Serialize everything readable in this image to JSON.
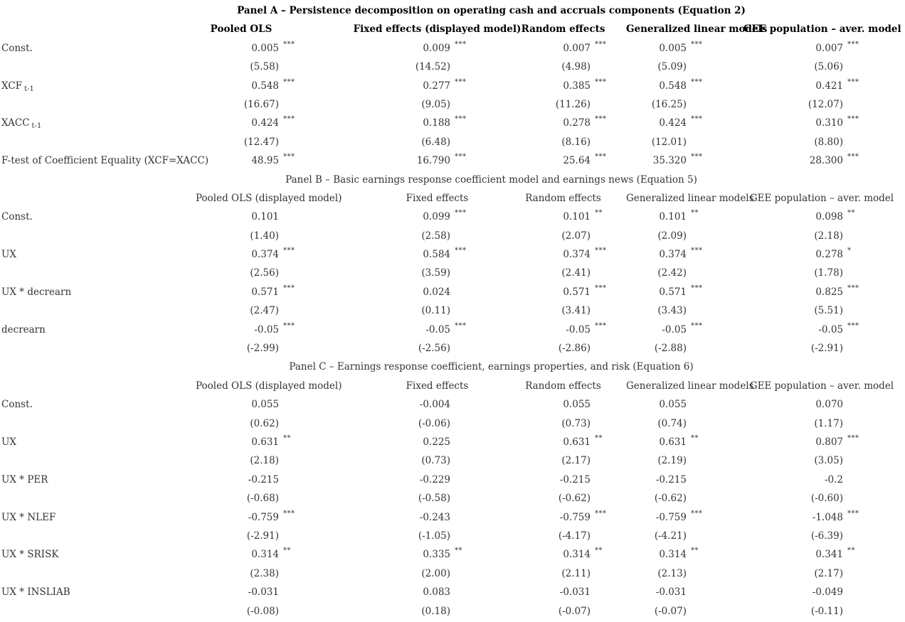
{
  "panels": [
    {
      "title": "Panel A – Persistence decomposition on operating cash and accruals components (Equation 2)",
      "headers": [
        "Pooled OLS",
        "Fixed effects (displayed model)",
        "Random effects",
        "Generalized linear models",
        "GEE population – aver. model"
      ],
      "rows": [
        {
          "label": "Const.",
          "sub": "",
          "values": [
            [
              "0.005",
              "***"
            ],
            [
              "0.009",
              "***"
            ],
            [
              "0.007",
              "***"
            ],
            [
              "0.005",
              "***"
            ],
            [
              "0.007",
              "***"
            ]
          ]
        },
        {
          "label": "",
          "sub": "",
          "values": [
            [
              "(5.58)",
              ""
            ],
            [
              "(14.52)",
              ""
            ],
            [
              "(4.98)",
              ""
            ],
            [
              "(5.09)",
              ""
            ],
            [
              "(5.06)",
              ""
            ]
          ]
        },
        {
          "label": "XCF",
          "sub": "t-1",
          "values": [
            [
              "0.548",
              "***"
            ],
            [
              "0.277",
              "***"
            ],
            [
              "0.385",
              "***"
            ],
            [
              "0.548",
              "***"
            ],
            [
              "0.421",
              "***"
            ]
          ]
        },
        {
          "label": "",
          "sub": "",
          "values": [
            [
              "(16.67)",
              ""
            ],
            [
              "(9.05)",
              ""
            ],
            [
              "(11.26)",
              ""
            ],
            [
              "(16.25)",
              ""
            ],
            [
              "(12.07)",
              ""
            ]
          ]
        },
        {
          "label": "XACC",
          "sub": "t-1",
          "values": [
            [
              "0.424",
              "***"
            ],
            [
              "0.188",
              "***"
            ],
            [
              "0.278",
              "***"
            ],
            [
              "0.424",
              "***"
            ],
            [
              "0.310",
              "***"
            ]
          ]
        },
        {
          "label": "",
          "sub": "",
          "values": [
            [
              "(12.47)",
              ""
            ],
            [
              "(6.48)",
              ""
            ],
            [
              "(8.16)",
              ""
            ],
            [
              "(12.01)",
              ""
            ],
            [
              "(8.80)",
              ""
            ]
          ]
        },
        {
          "label": "F-test of Coefficient Equality (XCF=XACC)",
          "sub": "",
          "values": [
            [
              "48.95",
              "***"
            ],
            [
              "16.790",
              "***"
            ],
            [
              "25.64",
              "***"
            ],
            [
              "35.320",
              "***"
            ],
            [
              "28.300",
              "***"
            ]
          ]
        }
      ]
    },
    {
      "title": "Panel B – Basic earnings response coefficient model and earnings news (Equation 5)",
      "headers": [
        "Pooled OLS (displayed model)",
        "Fixed effects",
        "Random effects",
        "Generalized linear models",
        "GEE population – aver. model"
      ],
      "rows": [
        {
          "label": "Const.",
          "sub": "",
          "values": [
            [
              "0.101",
              ""
            ],
            [
              "0.099",
              "***"
            ],
            [
              "0.101",
              "**"
            ],
            [
              "0.101",
              "**"
            ],
            [
              "0.098",
              "**"
            ]
          ]
        },
        {
          "label": "",
          "sub": "",
          "values": [
            [
              "(1.40)",
              ""
            ],
            [
              "(2.58)",
              ""
            ],
            [
              "(2.07)",
              ""
            ],
            [
              "(2.09)",
              ""
            ],
            [
              "(2.18)",
              ""
            ]
          ]
        },
        {
          "label": "UX",
          "sub": "",
          "values": [
            [
              "0.374",
              "***"
            ],
            [
              "0.584",
              "***"
            ],
            [
              "0.374",
              "***"
            ],
            [
              "0.374",
              "***"
            ],
            [
              "0.278",
              "*"
            ]
          ]
        },
        {
          "label": "",
          "sub": "",
          "values": [
            [
              "(2.56)",
              ""
            ],
            [
              "(3.59)",
              ""
            ],
            [
              "(2.41)",
              ""
            ],
            [
              "(2.42)",
              ""
            ],
            [
              "(1.78)",
              ""
            ]
          ]
        },
        {
          "label": "UX * decrearn",
          "sub": "",
          "values": [
            [
              "0.571",
              "***"
            ],
            [
              "0.024",
              ""
            ],
            [
              "0.571",
              "***"
            ],
            [
              "0.571",
              "***"
            ],
            [
              "0.825",
              "***"
            ]
          ]
        },
        {
          "label": "",
          "sub": "",
          "values": [
            [
              "(2.47)",
              ""
            ],
            [
              "(0.11)",
              ""
            ],
            [
              "(3.41)",
              ""
            ],
            [
              "(3.43)",
              ""
            ],
            [
              "(5.51)",
              ""
            ]
          ]
        },
        {
          "label": "decrearn",
          "sub": "",
          "values": [
            [
              "-0.05",
              "***"
            ],
            [
              "-0.05",
              "***"
            ],
            [
              "-0.05",
              "***"
            ],
            [
              "-0.05",
              "***"
            ],
            [
              "-0.05",
              "***"
            ]
          ]
        },
        {
          "label": "",
          "sub": "",
          "values": [
            [
              "(-2.99)",
              ""
            ],
            [
              "(-2.56)",
              ""
            ],
            [
              "(-2.86)",
              ""
            ],
            [
              "(-2.88)",
              ""
            ],
            [
              "(-2.91)",
              ""
            ]
          ]
        }
      ]
    },
    {
      "title": "Panel C – Earnings response coefficient, earnings properties, and risk (Equation 6)",
      "headers": [
        "Pooled OLS (displayed model)",
        "Fixed effects",
        "Random effects",
        "Generalized linear models",
        "GEE population – aver. model"
      ],
      "rows": [
        {
          "label": "Const.",
          "sub": "",
          "values": [
            [
              "0.055",
              ""
            ],
            [
              "-0.004",
              ""
            ],
            [
              "0.055",
              ""
            ],
            [
              "0.055",
              ""
            ],
            [
              "0.070",
              ""
            ]
          ]
        },
        {
          "label": "",
          "sub": "",
          "values": [
            [
              "(0.62)",
              ""
            ],
            [
              "(-0.06)",
              ""
            ],
            [
              "(0.73)",
              ""
            ],
            [
              "(0.74)",
              ""
            ],
            [
              "(1.17)",
              ""
            ]
          ]
        },
        {
          "label": "UX",
          "sub": "",
          "values": [
            [
              "0.631",
              "**"
            ],
            [
              "0.225",
              ""
            ],
            [
              "0.631",
              "**"
            ],
            [
              "0.631",
              "**"
            ],
            [
              "0.807",
              "***"
            ]
          ]
        },
        {
          "label": "",
          "sub": "",
          "values": [
            [
              "(2.18)",
              ""
            ],
            [
              "(0.73)",
              ""
            ],
            [
              "(2.17)",
              ""
            ],
            [
              "(2.19)",
              ""
            ],
            [
              "(3.05)",
              ""
            ]
          ]
        },
        {
          "label": "UX * PER",
          "sub": "",
          "values": [
            [
              "-0.215",
              ""
            ],
            [
              "-0.229",
              ""
            ],
            [
              "-0.215",
              ""
            ],
            [
              "-0.215",
              ""
            ],
            [
              "-0.2",
              ""
            ]
          ]
        },
        {
          "label": "",
          "sub": "",
          "values": [
            [
              "(-0.68)",
              ""
            ],
            [
              "(-0.58)",
              ""
            ],
            [
              "(-0.62)",
              ""
            ],
            [
              "(-0.62)",
              ""
            ],
            [
              "(-0.60)",
              ""
            ]
          ]
        },
        {
          "label": "UX * NLEF",
          "sub": "",
          "values": [
            [
              "-0.759",
              "***"
            ],
            [
              "-0.243",
              ""
            ],
            [
              "-0.759",
              "***"
            ],
            [
              "-0.759",
              "***"
            ],
            [
              "-1.048",
              "***"
            ]
          ]
        },
        {
          "label": "",
          "sub": "",
          "values": [
            [
              "(-2.91)",
              ""
            ],
            [
              "(-1.05)",
              ""
            ],
            [
              "(-4.17)",
              ""
            ],
            [
              "(-4.21)",
              ""
            ],
            [
              "(-6.39)",
              ""
            ]
          ]
        },
        {
          "label": "UX * SRISK",
          "sub": "",
          "values": [
            [
              "0.314",
              "**"
            ],
            [
              "0.335",
              "**"
            ],
            [
              "0.314",
              "**"
            ],
            [
              "0.314",
              "**"
            ],
            [
              "0.341",
              "**"
            ]
          ]
        },
        {
          "label": "",
          "sub": "",
          "values": [
            [
              "(2.38)",
              ""
            ],
            [
              "(2.00)",
              ""
            ],
            [
              "(2.11)",
              ""
            ],
            [
              "(2.13)",
              ""
            ],
            [
              "(2.17)",
              ""
            ]
          ]
        },
        {
          "label": "UX * INSLIAB",
          "sub": "",
          "values": [
            [
              "-0.031",
              ""
            ],
            [
              "0.083",
              ""
            ],
            [
              "-0.031",
              ""
            ],
            [
              "-0.031",
              ""
            ],
            [
              "-0.049",
              ""
            ]
          ]
        },
        {
          "label": "",
          "sub": "",
          "values": [
            [
              "(-0.08)",
              ""
            ],
            [
              "(0.18)",
              ""
            ],
            [
              "(-0.07)",
              ""
            ],
            [
              "(-0.07)",
              ""
            ],
            [
              "(-0.11)",
              ""
            ]
          ]
        }
      ]
    }
  ]
}
